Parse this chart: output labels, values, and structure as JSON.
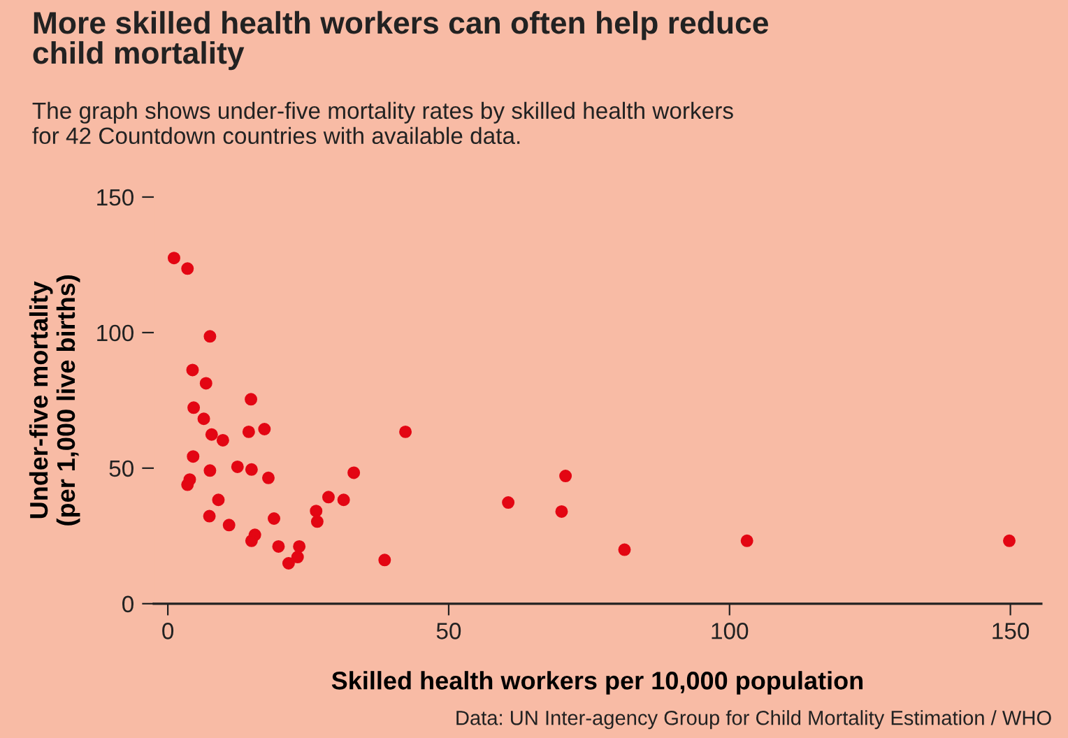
{
  "chart_data": {
    "type": "scatter",
    "title": "More skilled health workers can often help reduce\nchild mortality",
    "subtitle": "The graph shows under-five mortality rates by skilled health workers\nfor 42 Countdown countries with available data.",
    "xlabel": "Skilled health workers per 10,000 population",
    "ylabel": "Under-five mortality\n(per 1,000 live births)",
    "annotations": [
      "Data: UN Inter-agency Group for Child Mortality Estimation / WHO"
    ],
    "x": [
      1.1,
      3.5,
      7.5,
      4.4,
      6.8,
      14.8,
      4.6,
      6.4,
      7.8,
      9.8,
      14.4,
      17.2,
      4.5,
      7.5,
      12.4,
      14.9,
      17.9,
      3.9,
      3.5,
      9.0,
      7.4,
      10.9,
      18.9,
      15.5,
      14.9,
      19.7,
      23.4,
      23.1,
      21.5,
      42.3,
      33.1,
      28.6,
      31.3,
      26.4,
      26.6,
      38.6,
      60.6,
      70.8,
      70.1,
      81.3,
      103.1,
      149.8
    ],
    "series": [
      {
        "color": "#e30613",
        "values": [
          127.5,
          123.6,
          98.6,
          86.2,
          81.3,
          75.4,
          72.3,
          68.2,
          62.4,
          60.3,
          63.4,
          64.4,
          54.3,
          49.1,
          50.5,
          49.5,
          46.4,
          45.8,
          43.9,
          38.3,
          32.3,
          29.0,
          31.4,
          25.4,
          23.2,
          21.1,
          21.1,
          17.2,
          14.9,
          63.4,
          48.3,
          39.3,
          38.3,
          34.2,
          30.3,
          16.1,
          37.3,
          47.1,
          34.0,
          19.9,
          23.2,
          23.2
        ]
      }
    ],
    "xlim": [
      -2.5,
      155.5
    ],
    "ylim": [
      0,
      150
    ],
    "xticks": [
      0,
      50,
      100,
      150
    ],
    "yticks": [
      0,
      50,
      100,
      150
    ],
    "grid": false,
    "legend": false,
    "marker": "circle"
  }
}
